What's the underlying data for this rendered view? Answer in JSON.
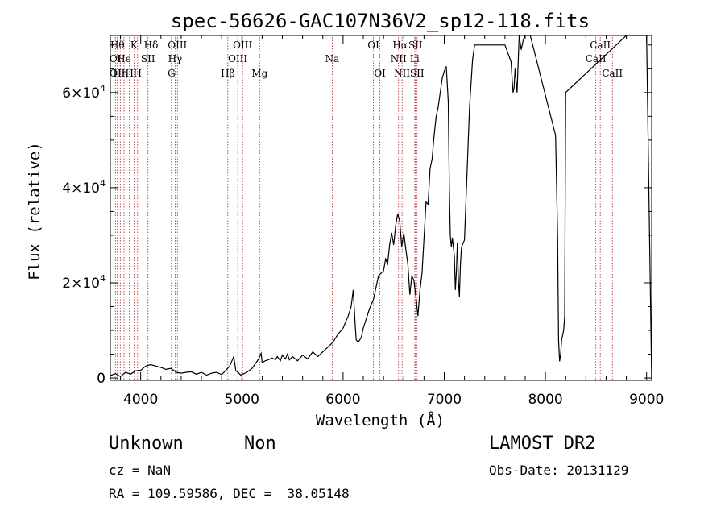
{
  "chart_data": {
    "type": "line",
    "title": "spec-56626-GAC107N36V2_sp12-118.fits",
    "xlabel": "Wavelength (Å)",
    "ylabel": "Flux (relative)",
    "xlim": [
      3700,
      9050
    ],
    "ylim": [
      -500,
      72000
    ],
    "grid": false,
    "legend": "none",
    "x_ticks": [
      {
        "value": 4000,
        "label": "4000"
      },
      {
        "value": 5000,
        "label": "5000"
      },
      {
        "value": 6000,
        "label": "6000"
      },
      {
        "value": 7000,
        "label": "7000"
      },
      {
        "value": 8000,
        "label": "8000"
      },
      {
        "value": 9000,
        "label": "9000"
      }
    ],
    "y_ticks": [
      {
        "value": 0,
        "mant": "0",
        "exp": ""
      },
      {
        "value": 20000,
        "mant": "2×10",
        "exp": "4"
      },
      {
        "value": 40000,
        "mant": "4×10",
        "exp": "4"
      },
      {
        "value": 60000,
        "mant": "6×10",
        "exp": "4"
      }
    ],
    "series": [
      {
        "x": [
          3700,
          3750,
          3800,
          3850,
          3900,
          3950,
          4000,
          4050,
          4100,
          4150,
          4200,
          4250,
          4300,
          4350,
          4400,
          4450,
          4500,
          4550,
          4600,
          4650,
          4700,
          4750,
          4800,
          4850,
          4880,
          4900,
          4920,
          4940,
          4960,
          4990,
          5050,
          5100,
          5150,
          5170,
          5190,
          5200,
          5230,
          5260,
          5300,
          5330,
          5350,
          5380,
          5400,
          5430,
          5450,
          5470,
          5500,
          5550,
          5600,
          5650,
          5700,
          5750,
          5800,
          5850,
          5900,
          5950,
          6000,
          6050,
          6080,
          6100,
          6120,
          6130,
          6150,
          6180,
          6200,
          6230,
          6260,
          6300,
          6350,
          6400,
          6420,
          6440,
          6460,
          6480,
          6500,
          6520,
          6540,
          6560,
          6580,
          6600,
          6620,
          6640,
          6660,
          6680,
          6700,
          6720,
          6740,
          6760,
          6780,
          6800,
          6820,
          6840,
          6860,
          6880,
          6900,
          6920,
          6940,
          6960,
          6980,
          7000,
          7020,
          7040,
          7050,
          7060,
          7070,
          7080,
          7100,
          7110,
          7120,
          7130,
          7140,
          7150,
          7160,
          7170,
          7200,
          7250,
          7280,
          7300,
          7350,
          7400,
          7500,
          7600,
          7660,
          7670,
          7680,
          7690,
          7700,
          7720,
          7740,
          7760,
          7780,
          7800,
          7850,
          8100,
          8120,
          8130,
          8140,
          8150,
          8160,
          8180,
          8190,
          8200,
          8600,
          8800,
          9000,
          9050
        ],
        "y": [
          500,
          900,
          300,
          1200,
          800,
          1500,
          1600,
          2500,
          2800,
          2500,
          2200,
          1800,
          2000,
          1200,
          1000,
          1200,
          1300,
          800,
          1200,
          600,
          1000,
          1200,
          700,
          1800,
          2500,
          3500,
          4500,
          1500,
          1200,
          600,
          1200,
          2000,
          3500,
          4200,
          5200,
          3200,
          3600,
          3800,
          4200,
          3800,
          4500,
          3600,
          4800,
          4000,
          5000,
          3800,
          4500,
          3600,
          4800,
          4000,
          5500,
          4500,
          5500,
          6500,
          7500,
          9200,
          10500,
          13000,
          15000,
          18500,
          11000,
          8000,
          7500,
          8500,
          10500,
          12500,
          14500,
          16500,
          21500,
          22500,
          25000,
          24000,
          28000,
          30500,
          28000,
          32000,
          34500,
          33000,
          27500,
          30500,
          27000,
          24000,
          17500,
          21500,
          20500,
          17000,
          13000,
          18500,
          22000,
          29500,
          37000,
          36500,
          44000,
          46000,
          51000,
          55000,
          57000,
          60000,
          63000,
          64500,
          65500,
          58000,
          40000,
          30000,
          27500,
          29500,
          25500,
          18500,
          22500,
          28500,
          20500,
          17000,
          24000,
          27500,
          29000,
          57000,
          67000,
          70000,
          70000,
          70000,
          70000,
          70000,
          66500,
          63000,
          60000,
          61000,
          65000,
          60000,
          72000,
          69000,
          71000,
          73000,
          72000,
          51000,
          30000,
          8000,
          3500,
          5000,
          8000,
          10000,
          13000,
          60000,
          68000,
          72000,
          73000,
          -500
        ]
      }
    ],
    "line_markers": [
      {
        "x": 3750,
        "label": "OI",
        "row": 1
      },
      {
        "x": 3770,
        "label": "Hθ",
        "row": 0
      },
      {
        "x": 3770,
        "label": "OII",
        "row": 2
      },
      {
        "x": 3798,
        "label": "Hη",
        "row": 2
      },
      {
        "x": 3835,
        "label": "He",
        "row": 1
      },
      {
        "x": 3889,
        "label": "H",
        "row": 2
      },
      {
        "x": 3934,
        "label": "K",
        "row": 0
      },
      {
        "x": 3969,
        "label": "H",
        "row": 2
      },
      {
        "x": 4072,
        "label": "SII",
        "row": 1
      },
      {
        "x": 4102,
        "label": "Hδ",
        "row": 0
      },
      {
        "x": 4304,
        "label": "G",
        "row": 2
      },
      {
        "x": 4340,
        "label": "Hγ",
        "row": 1
      },
      {
        "x": 4363,
        "label": "OIII",
        "row": 0
      },
      {
        "x": 4861,
        "label": "Hβ",
        "row": 2
      },
      {
        "x": 4959,
        "label": "OIII",
        "row": 1
      },
      {
        "x": 5007,
        "label": "OIII",
        "row": 0
      },
      {
        "x": 5175,
        "label": "Mg",
        "row": 2
      },
      {
        "x": 5893,
        "label": "Na",
        "row": 1
      },
      {
        "x": 6300,
        "label": "OI",
        "row": 0
      },
      {
        "x": 6364,
        "label": "OI",
        "row": 2
      },
      {
        "x": 6548,
        "label": "NII",
        "row": 1
      },
      {
        "x": 6563,
        "label": "Hα",
        "row": 0
      },
      {
        "x": 6583,
        "label": "NII",
        "row": 2
      },
      {
        "x": 6708,
        "label": "Li",
        "row": 1
      },
      {
        "x": 6716,
        "label": "SII",
        "row": 0
      },
      {
        "x": 6731,
        "label": "SII",
        "row": 2
      },
      {
        "x": 8498,
        "label": "CaII",
        "row": 1
      },
      {
        "x": 8542,
        "label": "CaII",
        "row": 0
      },
      {
        "x": 8662,
        "label": "CaII",
        "row": 2
      }
    ]
  },
  "info": {
    "class": "Unknown",
    "subclass": "Non",
    "survey": "LAMOST DR2",
    "cz": "cz = NaN",
    "obs_date": "Obs-Date: 20131129",
    "radec": "RA = 109.59586, DEC =  38.05148"
  },
  "colors": {
    "marker_line": "#b22222",
    "spectrum": "#000000",
    "frame": "#000000"
  }
}
